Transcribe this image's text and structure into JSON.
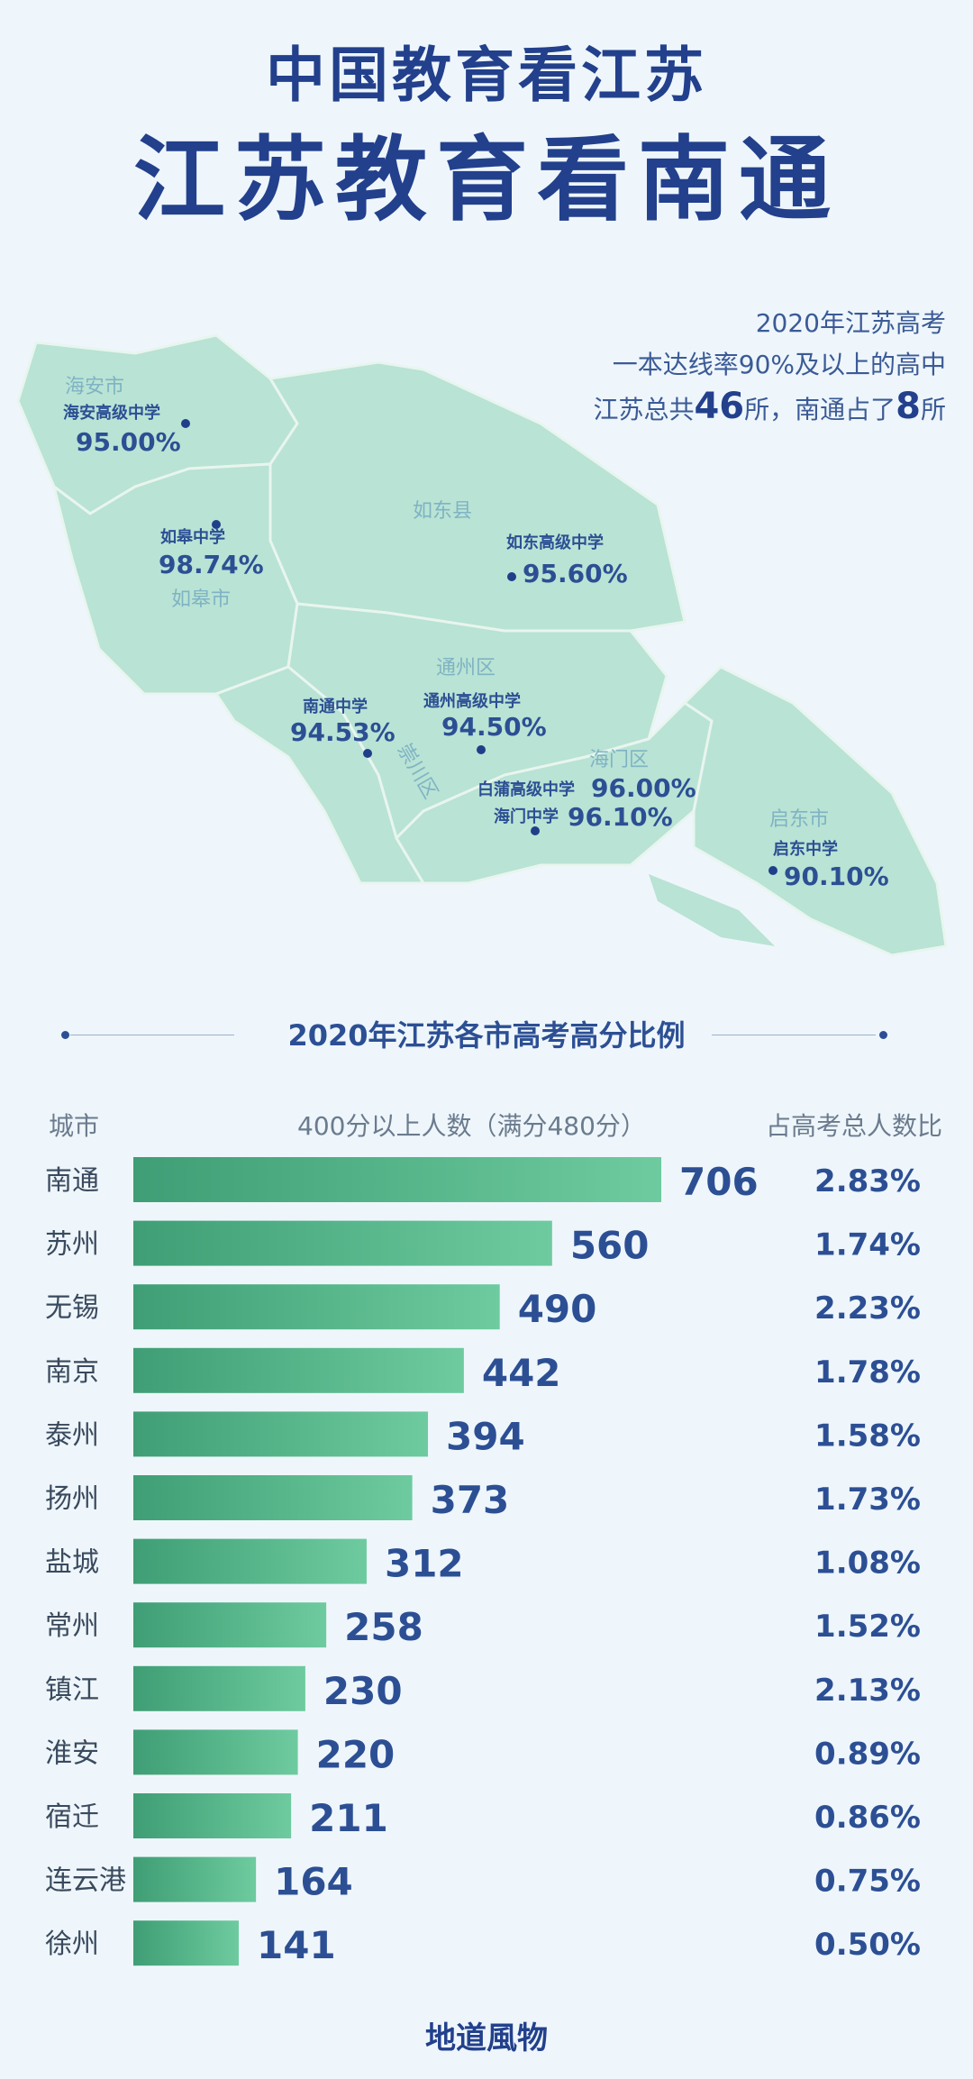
{
  "title_line1": "中国教育看江苏",
  "title_line2": "江苏教育看南通",
  "stat": {
    "line1": "2020年江苏高考",
    "line2": "一本达线率90%及以上的高中",
    "line3_pre": "江苏总共",
    "total": "46",
    "line3_mid": "所，南通占了",
    "nantong_count": "8",
    "line3_post": "所"
  },
  "map": {
    "regions": [
      "海安市",
      "如东县",
      "如皋市",
      "通州区",
      "海门区",
      "启东市",
      "崇川区"
    ],
    "schools": [
      {
        "name": "海安高级中学",
        "rate": "95.00%"
      },
      {
        "name": "如皋中学",
        "rate": "98.74%"
      },
      {
        "name": "如东高级中学",
        "rate": "95.60%"
      },
      {
        "name": "南通中学",
        "rate": "94.53%"
      },
      {
        "name": "通州高级中学",
        "rate": "94.50%"
      },
      {
        "name": "白蒲高级中学",
        "rate": "96.00%"
      },
      {
        "name": "海门中学",
        "rate": "96.10%"
      },
      {
        "name": "启东中学",
        "rate": "90.10%"
      }
    ],
    "colors": {
      "land": "#b9e3d4",
      "border": "#e8f5ef",
      "dot": "#1f3f8a",
      "label": "#2c4f94",
      "region_label": "#7fb3c4"
    }
  },
  "section_title": "2020年江苏各市高考高分比例",
  "columns": {
    "city": "城市",
    "count": "400分以上人数（满分480分）",
    "ratio": "占高考总人数比"
  },
  "chart_data": {
    "type": "bar",
    "orientation": "horizontal",
    "title": "2020年江苏各市高考高分比例",
    "categories": [
      "南通",
      "苏州",
      "无锡",
      "南京",
      "泰州",
      "扬州",
      "盐城",
      "常州",
      "镇江",
      "淮安",
      "宿迁",
      "连云港",
      "徐州"
    ],
    "series": [
      {
        "name": "400分以上人数（满分480分）",
        "values": [
          706,
          560,
          490,
          442,
          394,
          373,
          312,
          258,
          230,
          220,
          211,
          164,
          141
        ]
      }
    ],
    "ratio_labels": [
      "2.83%",
      "1.74%",
      "2.23%",
      "1.78%",
      "1.58%",
      "1.73%",
      "1.08%",
      "1.52%",
      "2.13%",
      "0.89%",
      "0.86%",
      "0.75%",
      "0.50%"
    ],
    "colors": {
      "bar_start": "#3f9e75",
      "bar_end": "#6ecb9f",
      "value_text": "#2c4f94"
    }
  },
  "footer": "地道風物"
}
